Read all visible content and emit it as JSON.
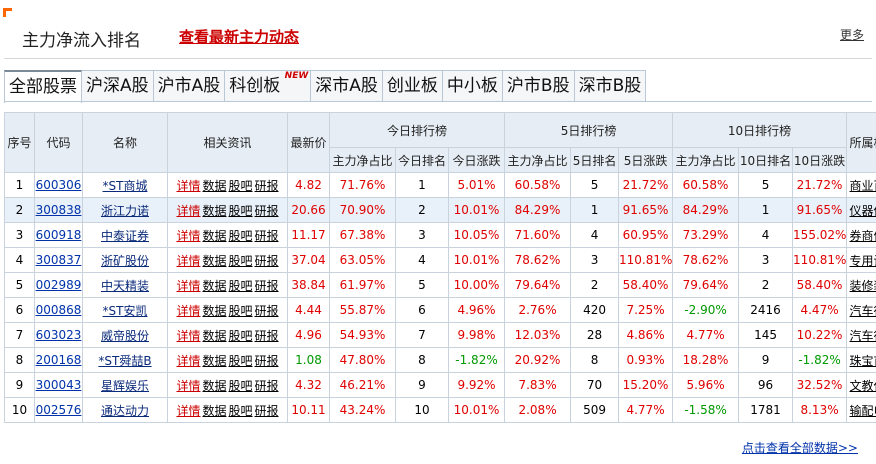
{
  "header": {
    "title": "主力净流入排名",
    "latest_link": "查看最新主力动态",
    "more": "更多"
  },
  "tabs": [
    {
      "label": "全部股票",
      "active": true
    },
    {
      "label": "沪深A股",
      "active": false
    },
    {
      "label": "沪市A股",
      "active": false
    },
    {
      "label": "科创板",
      "active": false,
      "badge": "NEW"
    },
    {
      "label": "深市A股",
      "active": false
    },
    {
      "label": "创业板",
      "active": false
    },
    {
      "label": "中小板",
      "active": false
    },
    {
      "label": "沪市B股",
      "active": false
    },
    {
      "label": "深市B股",
      "active": false
    }
  ],
  "table": {
    "headers": {
      "seq": "序号",
      "code": "代码",
      "name": "名称",
      "news": "相关资讯",
      "price": "最新价",
      "today": "今日排行榜",
      "day5": "5日排行榜",
      "day10": "10日排行榜",
      "sector": "所属板块",
      "sub": [
        "主力净占比",
        "今日排名",
        "今日涨跌",
        "主力净占比",
        "5日排名",
        "5日涨跌",
        "主力净占比",
        "10日排名",
        "10日涨跌"
      ]
    },
    "link_labels": [
      "详情",
      "数据",
      "股吧",
      "研报"
    ],
    "rows": [
      {
        "seq": "1",
        "code": "600306",
        "name": "*ST商城",
        "price": "4.82",
        "t_ratio": "71.76%",
        "t_rank": "1",
        "t_chg": "5.01%",
        "d5_ratio": "60.58%",
        "d5_rank": "5",
        "d5_chg": "21.72%",
        "d10_ratio": "60.58%",
        "d10_rank": "5",
        "d10_chg": "21.72%",
        "sector": "商业百货"
      },
      {
        "seq": "2",
        "code": "300838",
        "name": "浙江力诺",
        "price": "20.66",
        "t_ratio": "70.90%",
        "t_rank": "2",
        "t_chg": "10.01%",
        "d5_ratio": "84.29%",
        "d5_rank": "1",
        "d5_chg": "91.65%",
        "d10_ratio": "84.29%",
        "d10_rank": "1",
        "d10_chg": "91.65%",
        "sector": "仪器仪表"
      },
      {
        "seq": "3",
        "code": "600918",
        "name": "中泰证券",
        "price": "11.17",
        "t_ratio": "67.38%",
        "t_rank": "3",
        "t_chg": "10.05%",
        "d5_ratio": "71.60%",
        "d5_rank": "4",
        "d5_chg": "60.95%",
        "d10_ratio": "73.29%",
        "d10_rank": "4",
        "d10_chg": "155.02%",
        "sector": "券商信托"
      },
      {
        "seq": "4",
        "code": "300837",
        "name": "浙矿股份",
        "price": "37.04",
        "t_ratio": "63.05%",
        "t_rank": "4",
        "t_chg": "10.01%",
        "d5_ratio": "78.62%",
        "d5_rank": "3",
        "d5_chg": "110.81%",
        "d10_ratio": "78.62%",
        "d10_rank": "3",
        "d10_chg": "110.81%",
        "sector": "专用设备"
      },
      {
        "seq": "5",
        "code": "002989",
        "name": "中天精装",
        "price": "38.84",
        "t_ratio": "61.97%",
        "t_rank": "5",
        "t_chg": "10.00%",
        "d5_ratio": "79.64%",
        "d5_rank": "2",
        "d5_chg": "58.40%",
        "d10_ratio": "79.64%",
        "d10_rank": "2",
        "d10_chg": "58.40%",
        "sector": "装修装饰"
      },
      {
        "seq": "6",
        "code": "000868",
        "name": "*ST安凯",
        "price": "4.44",
        "t_ratio": "55.87%",
        "t_rank": "6",
        "t_chg": "4.96%",
        "d5_ratio": "2.76%",
        "d5_rank": "420",
        "d5_chg": "7.25%",
        "d10_ratio": "-2.90%",
        "d10_rank": "2416",
        "d10_chg": "4.47%",
        "sector": "汽车行业"
      },
      {
        "seq": "7",
        "code": "603023",
        "name": "威帝股份",
        "price": "4.96",
        "t_ratio": "54.93%",
        "t_rank": "7",
        "t_chg": "9.98%",
        "d5_ratio": "12.03%",
        "d5_rank": "28",
        "d5_chg": "4.86%",
        "d10_ratio": "4.77%",
        "d10_rank": "145",
        "d10_chg": "10.22%",
        "sector": "汽车行业"
      },
      {
        "seq": "8",
        "code": "200168",
        "name": "*ST舜喆B",
        "price": "1.08",
        "t_ratio": "47.80%",
        "t_rank": "8",
        "t_chg": "-1.82%",
        "d5_ratio": "20.92%",
        "d5_rank": "8",
        "d5_chg": "0.93%",
        "d10_ratio": "18.28%",
        "d10_rank": "9",
        "d10_chg": "-1.82%",
        "sector": "珠宝首饰"
      },
      {
        "seq": "9",
        "code": "300043",
        "name": "星辉娱乐",
        "price": "4.32",
        "t_ratio": "46.21%",
        "t_rank": "9",
        "t_chg": "9.92%",
        "d5_ratio": "7.83%",
        "d5_rank": "70",
        "d5_chg": "15.20%",
        "d10_ratio": "5.96%",
        "d10_rank": "96",
        "d10_chg": "32.52%",
        "sector": "文教休闲"
      },
      {
        "seq": "10",
        "code": "002576",
        "name": "通达动力",
        "price": "10.11",
        "t_ratio": "43.24%",
        "t_rank": "10",
        "t_chg": "10.01%",
        "d5_ratio": "2.08%",
        "d5_rank": "509",
        "d5_chg": "4.77%",
        "d10_ratio": "-1.58%",
        "d10_rank": "1781",
        "d10_chg": "8.13%",
        "sector": "输配电气"
      }
    ]
  },
  "footer": {
    "more_data": "点击查看全部数据>>"
  },
  "colors": {
    "up": "#e00000",
    "down": "#009900",
    "accent": "#cc0000",
    "header_bg": "#e6edf4"
  }
}
